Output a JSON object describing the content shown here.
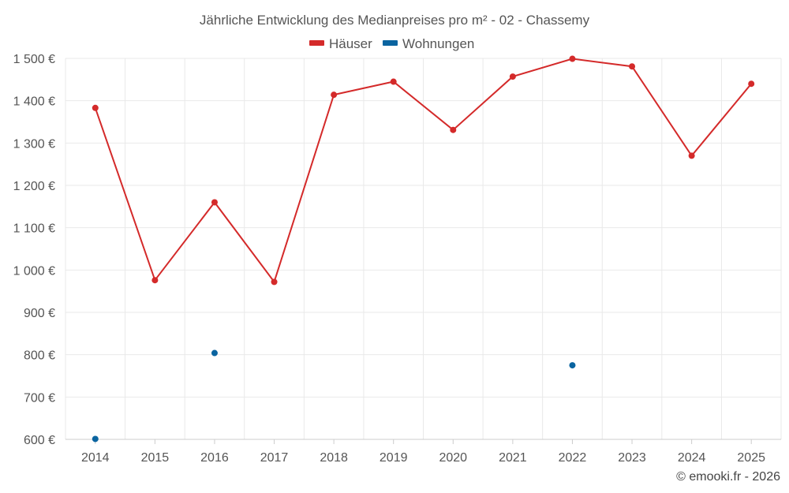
{
  "chart_data": {
    "type": "line",
    "title": "Jährliche Entwicklung des Medianpreises pro m² - 02 - Chassemy",
    "categories": [
      "2014",
      "2015",
      "2016",
      "2017",
      "2018",
      "2019",
      "2020",
      "2021",
      "2022",
      "2023",
      "2024",
      "2025"
    ],
    "y_ticks": [
      600,
      700,
      800,
      900,
      1000,
      1100,
      1200,
      1300,
      1400,
      1500
    ],
    "y_tick_labels": [
      "600 €",
      "700 €",
      "800 €",
      "900 €",
      "1 000 €",
      "1 100 €",
      "1 200 €",
      "1 300 €",
      "1 400 €",
      "1 500 €"
    ],
    "ylim": [
      600,
      1500
    ],
    "xlabel": "",
    "ylabel": "",
    "grid": true,
    "legend_position": "top-center",
    "series": [
      {
        "name": "Häuser",
        "color": "#d42a2a",
        "values": [
          1383,
          976,
          1160,
          972,
          1414,
          1445,
          1331,
          1457,
          1499,
          1481,
          1270,
          1440
        ]
      },
      {
        "name": "Wohnungen",
        "color": "#0a64a0",
        "values": [
          601,
          null,
          804,
          null,
          null,
          null,
          null,
          null,
          775,
          null,
          null,
          null
        ]
      }
    ]
  },
  "credit": "© emooki.fr - 2026"
}
